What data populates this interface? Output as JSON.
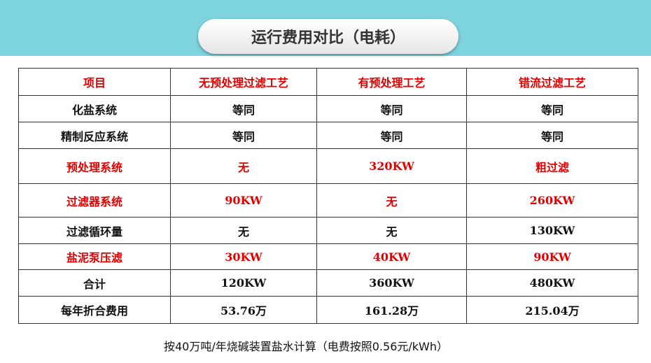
{
  "header": {
    "title": "运行费用对比（电耗）"
  },
  "table": {
    "columns": [
      "项目",
      "无预处理过滤工艺",
      "有预处理工艺",
      "错流过滤工艺"
    ],
    "rows": [
      [
        "化盐系统",
        "等同",
        "等同",
        "等同"
      ],
      [
        "精制反应系统",
        "等同",
        "等同",
        "等同"
      ],
      [
        "预处理系统",
        "无",
        "320KW",
        "粗过滤"
      ],
      [
        "过滤器系统",
        "90KW",
        "无",
        "260KW"
      ],
      [
        "过滤循环量",
        "无",
        "无",
        "130KW"
      ],
      [
        "盐泥泵压滤",
        "30KW",
        "40KW",
        "90KW"
      ],
      [
        "合计",
        "120KW",
        "360KW",
        "480KW"
      ],
      [
        "每年折合费用",
        "53.76万",
        "161.28万",
        "215.04万"
      ]
    ]
  },
  "footnote": "按40万吨/年烧碱装置盐水计算（电费按照0.56元/kWh）"
}
